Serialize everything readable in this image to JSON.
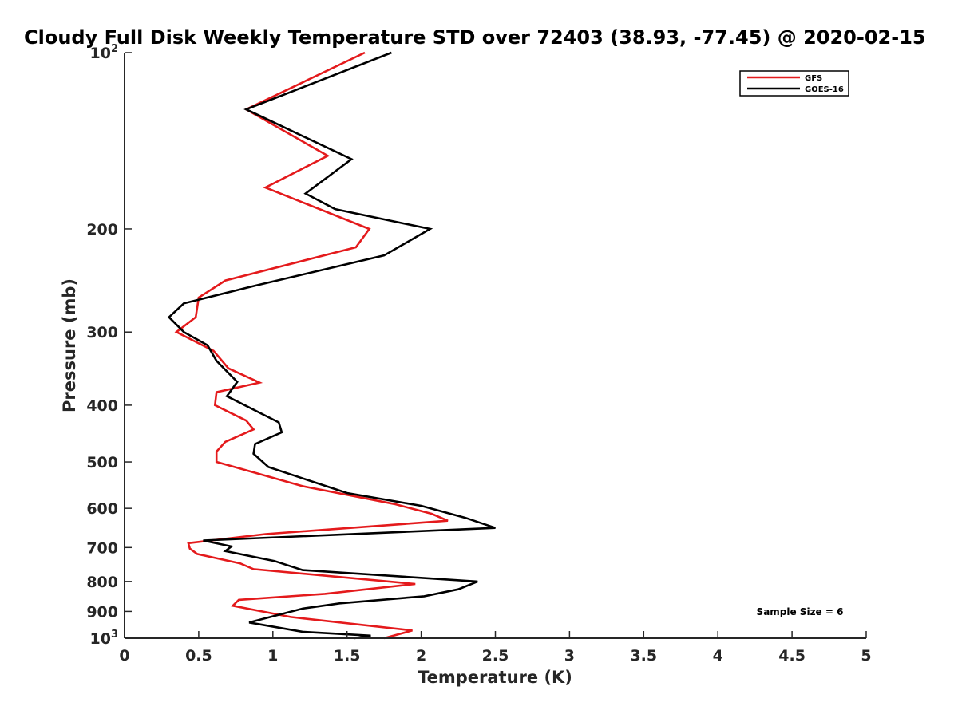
{
  "chart_data": {
    "type": "line",
    "title": "Cloudy Full Disk Weekly Temperature STD over 72403 (38.93, -77.45) @ 2020-02-15",
    "xlabel": "Temperature (K)",
    "ylabel": "Pressure (mb)",
    "xlim": [
      0,
      5
    ],
    "ylim": [
      100,
      1000
    ],
    "y_scale": "log",
    "y_reversed": true,
    "x_ticks": [
      "0",
      "0.5",
      "1",
      "1.5",
      "2",
      "2.5",
      "3",
      "3.5",
      "4",
      "4.5",
      "5"
    ],
    "y_ticks": [
      {
        "value": 100,
        "base": "10",
        "exp": "2"
      },
      {
        "value": 200,
        "label": "200"
      },
      {
        "value": 300,
        "label": "300"
      },
      {
        "value": 400,
        "label": "400"
      },
      {
        "value": 500,
        "label": "500"
      },
      {
        "value": 600,
        "label": "600"
      },
      {
        "value": 700,
        "label": "700"
      },
      {
        "value": 800,
        "label": "800"
      },
      {
        "value": 900,
        "label": "900"
      },
      {
        "value": 1000,
        "base": "10",
        "exp": "3"
      }
    ],
    "grid": false,
    "legend_position": "top-right",
    "annotation": "Sample Size = 6",
    "series": [
      {
        "name": "GFS",
        "color": "#e41a1c",
        "points": [
          [
            1.62,
            100
          ],
          [
            0.82,
            125
          ],
          [
            1.37,
            150
          ],
          [
            0.95,
            170
          ],
          [
            1.65,
            200
          ],
          [
            1.56,
            215
          ],
          [
            0.68,
            245
          ],
          [
            0.5,
            262
          ],
          [
            0.48,
            283
          ],
          [
            0.35,
            300
          ],
          [
            0.6,
            323
          ],
          [
            0.7,
            346
          ],
          [
            0.91,
            366
          ],
          [
            0.62,
            380
          ],
          [
            0.61,
            400
          ],
          [
            0.82,
            425
          ],
          [
            0.87,
            440
          ],
          [
            0.68,
            462
          ],
          [
            0.62,
            480
          ],
          [
            0.62,
            500
          ],
          [
            1.2,
            550
          ],
          [
            1.82,
            590
          ],
          [
            2.07,
            613
          ],
          [
            2.18,
            630
          ],
          [
            0.95,
            664
          ],
          [
            0.43,
            688
          ],
          [
            0.44,
            703
          ],
          [
            0.49,
            718
          ],
          [
            0.78,
            745
          ],
          [
            0.87,
            762
          ],
          [
            1.96,
            808
          ],
          [
            1.35,
            840
          ],
          [
            0.77,
            860
          ],
          [
            0.73,
            880
          ],
          [
            1.12,
            920
          ],
          [
            1.94,
            970
          ],
          [
            1.75,
            1000
          ]
        ]
      },
      {
        "name": "GOES-16",
        "color": "#000000",
        "points": [
          [
            1.8,
            100
          ],
          [
            0.82,
            125
          ],
          [
            1.53,
            152
          ],
          [
            1.22,
            174
          ],
          [
            1.42,
            185
          ],
          [
            2.06,
            200
          ],
          [
            1.75,
            222
          ],
          [
            0.88,
            250
          ],
          [
            0.4,
            268
          ],
          [
            0.3,
            283
          ],
          [
            0.4,
            300
          ],
          [
            0.56,
            316
          ],
          [
            0.62,
            336
          ],
          [
            0.76,
            365
          ],
          [
            0.69,
            386
          ],
          [
            1.04,
            428
          ],
          [
            1.06,
            445
          ],
          [
            0.88,
            466
          ],
          [
            0.87,
            484
          ],
          [
            0.97,
            510
          ],
          [
            1.5,
            565
          ],
          [
            2.0,
            594
          ],
          [
            2.3,
            623
          ],
          [
            2.5,
            648
          ],
          [
            0.53,
            681
          ],
          [
            0.72,
            697
          ],
          [
            0.68,
            710
          ],
          [
            1.01,
            738
          ],
          [
            1.2,
            765
          ],
          [
            2.38,
            800
          ],
          [
            2.25,
            825
          ],
          [
            2.02,
            848
          ],
          [
            1.45,
            872
          ],
          [
            1.2,
            890
          ],
          [
            0.84,
            940
          ],
          [
            1.2,
            975
          ],
          [
            1.66,
            990
          ],
          [
            1.55,
            1000
          ]
        ]
      }
    ]
  }
}
